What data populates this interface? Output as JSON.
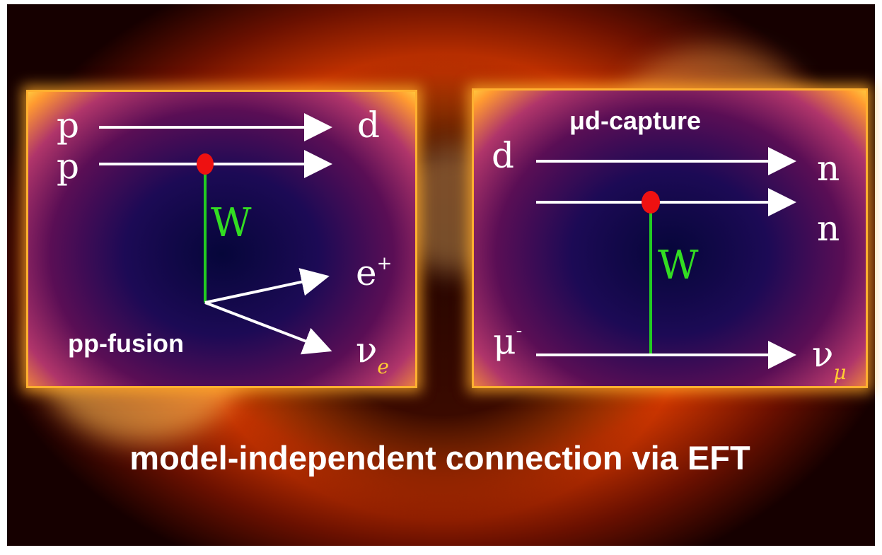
{
  "left_panel": {
    "label": "pp-fusion",
    "in_top": "p",
    "in_bottom": "p",
    "out_top": "d",
    "boson": "W",
    "positron": "e",
    "positron_sup": "+",
    "neutrino": "ν",
    "neutrino_sub": "e"
  },
  "right_panel": {
    "label": "μd-capture",
    "in_top": "d",
    "out_top": "n",
    "out_middle": "n",
    "boson": "W",
    "muon": "μ",
    "muon_sup": "-",
    "neutrino": "ν",
    "neutrino_sub": "μ"
  },
  "caption": "model-independent connection via EFT",
  "colors": {
    "sun_core": "#ff7a00",
    "panel_center": "#06063a",
    "panel_border": "#ffb030",
    "w_line": "#22cc22",
    "vertex": "#ee1111",
    "arrow": "#ffffff"
  }
}
